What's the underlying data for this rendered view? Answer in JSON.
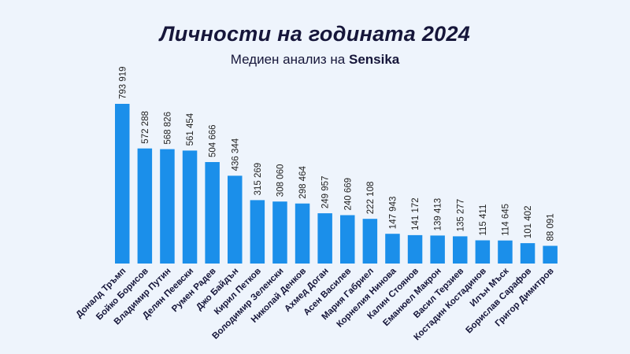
{
  "chart_data": {
    "type": "bar",
    "title": "Личности на годината 2024",
    "subtitle_prefix": "Медиен анализ на",
    "subtitle_brand": "Sensika",
    "categories": [
      "Доналд Тръмп",
      "Бойко Борисов",
      "Владимир Путин",
      "Делян Пеевски",
      "Румен Радев",
      "Джо Байдън",
      "Кирил Петков",
      "Володимир Зеленски",
      "Николай Денков",
      "Ахмед Доган",
      "Асен Василев",
      "Мария Габриел",
      "Корнелия Нинова",
      "Калин Стоянов",
      "Еманюел Макрон",
      "Васил Терзиев",
      "Костадин Костадинов",
      "Илън Мъск",
      "Борислав Сарафов",
      "Григор Димитров"
    ],
    "values": [
      793919,
      572288,
      568826,
      561454,
      504666,
      436344,
      315269,
      308060,
      298464,
      249957,
      240669,
      222108,
      147943,
      141172,
      139413,
      135277,
      115411,
      114645,
      101402,
      88091
    ],
    "value_labels": [
      "793 919",
      "572 288",
      "568 826",
      "561 454",
      "504 666",
      "436 344",
      "315 269",
      "308 060",
      "298 464",
      "249 957",
      "240 669",
      "222 108",
      "147 943",
      "141 172",
      "139 413",
      "135 277",
      "115 411",
      "114 645",
      "101 402",
      "88 091"
    ],
    "grid": false,
    "legend": "none",
    "colors": {
      "bar": "#1b8fea",
      "background": "#eef4fc",
      "text": "#16163a"
    }
  }
}
